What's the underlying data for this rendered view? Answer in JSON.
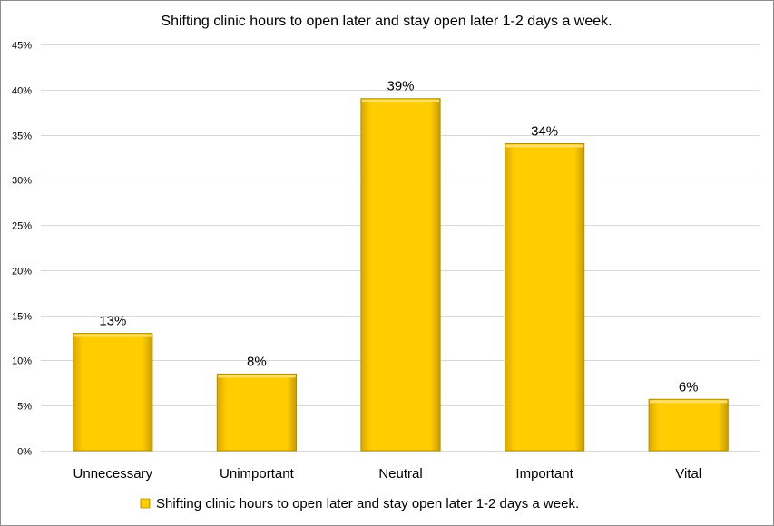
{
  "chart_data": {
    "type": "bar",
    "title": "Shifting clinic hours to open later and stay open later 1-2 days a week.",
    "categories": [
      "Unnecessary",
      "Unimportant",
      "Neutral",
      "Important",
      "Vital"
    ],
    "series": [
      {
        "name": "Shifting clinic hours to open later and stay open later 1-2 days a week.",
        "values": [
          13,
          8.5,
          39,
          34,
          5.7
        ],
        "data_labels": [
          "13%",
          "8%",
          "39%",
          "34%",
          "6%"
        ]
      }
    ],
    "ylim": [
      0,
      45
    ],
    "yticks": [
      "0%",
      "5%",
      "10%",
      "15%",
      "20%",
      "25%",
      "30%",
      "35%",
      "40%",
      "45%"
    ],
    "ytick_values": [
      0,
      5,
      10,
      15,
      20,
      25,
      30,
      35,
      40,
      45
    ],
    "grid": true,
    "legend_position": "bottom",
    "bar_color": "#FFCC00",
    "bar_edge_color": "#B38F00"
  }
}
